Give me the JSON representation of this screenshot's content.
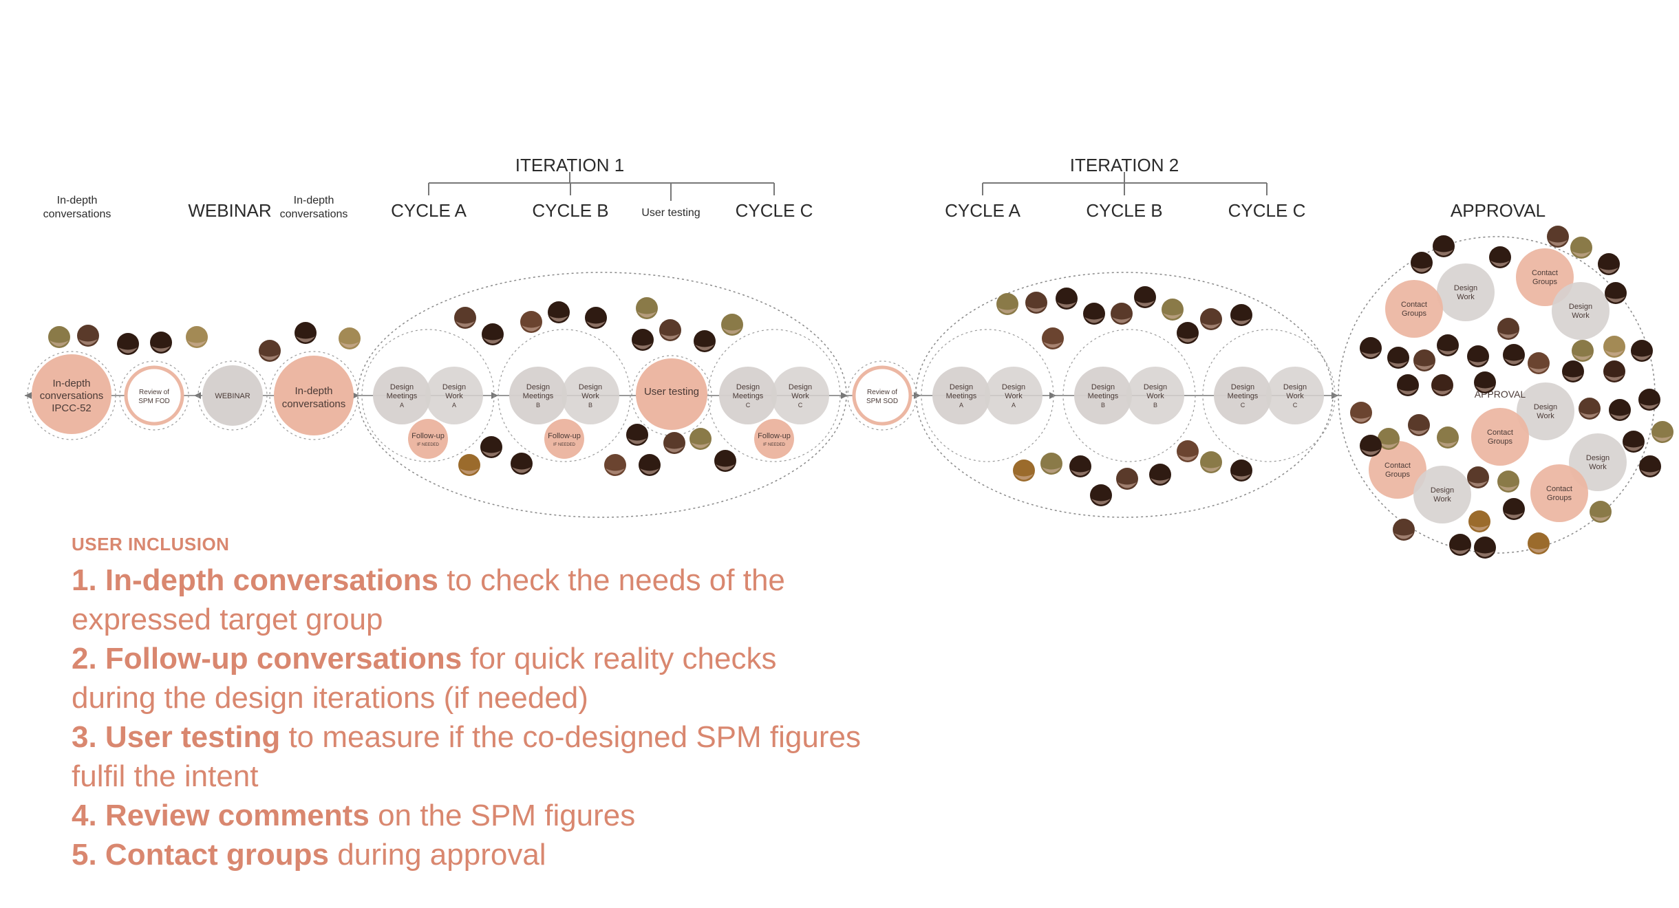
{
  "top_labels": {
    "in_depth_1": "In-depth conversations",
    "webinar": "WEBINAR",
    "in_depth_2": "In-depth conversations",
    "iteration_1": "ITERATION 1",
    "iteration_2": "ITERATION 2",
    "it1_cycle_a": "CYCLE A",
    "it1_cycle_b": "CYCLE B",
    "it1_user_testing": "User testing",
    "it1_cycle_c": "CYCLE C",
    "it2_cycle_a": "CYCLE A",
    "it2_cycle_b": "CYCLE B",
    "it2_cycle_c": "CYCLE C",
    "approval": "APPROVAL"
  },
  "nodes": {
    "ipcc": [
      "In-depth",
      "conversations",
      "IPCC-52"
    ],
    "review_fod": [
      "Review of",
      "SPM FOD"
    ],
    "webinar": "WEBINAR",
    "in_depth_2": [
      "In-depth",
      "conversations"
    ],
    "user_testing": "User testing",
    "review_sod": [
      "Review of",
      "SPM SOD"
    ],
    "design_meetings": [
      "Design",
      "Meetings"
    ],
    "design_work": [
      "Design",
      "Work"
    ],
    "follow_up": "Follow-up",
    "if_needed": "IF NEEDED",
    "cycle_letters": [
      "A",
      "B",
      "C"
    ],
    "approval_center": "APPROVAL",
    "contact_groups": [
      "Contact",
      "Groups"
    ]
  },
  "legend": {
    "heading": "USER INCLUSION",
    "items": [
      {
        "bold": "1. In-depth conversations",
        "rest": " to check the needs of the expressed target group"
      },
      {
        "bold": "2. Follow-up conversations",
        "rest": " for quick reality checks during the design iterations (if needed)"
      },
      {
        "bold": "3. User testing",
        "rest": " to measure if the co-designed SPM figures fulfil the intent"
      },
      {
        "bold": "4. Review comments",
        "rest": " on the SPM figures"
      },
      {
        "bold": "5. Contact groups",
        "rest": " during approval"
      }
    ]
  },
  "colors": {
    "pink": "#ecb7a3",
    "pink_text": "#d9876f",
    "grey": "#d6d1cf",
    "line": "#777777",
    "skin_tones": [
      "#8a7a48",
      "#5a3a2a",
      "#2f1b12",
      "#8c5a44",
      "#a38a55",
      "#3d2318",
      "#6b4430",
      "#9b6b2c"
    ]
  }
}
